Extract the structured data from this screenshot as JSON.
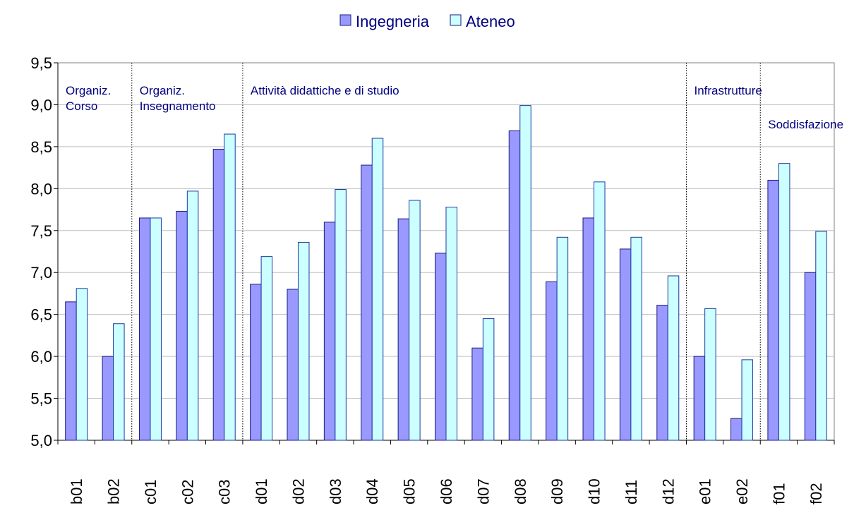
{
  "chart_data": {
    "type": "bar",
    "title": "",
    "xlabel": "",
    "ylabel": "",
    "ylim": [
      5.0,
      9.5
    ],
    "yticks": [
      "5,0",
      "5,5",
      "6,0",
      "6,5",
      "7,0",
      "7,5",
      "8,0",
      "8,5",
      "9,0",
      "9,5"
    ],
    "grid": true,
    "legend_position": "top-center",
    "categories": [
      "b01",
      "b02",
      "c01",
      "c02",
      "c03",
      "d01",
      "d02",
      "d03",
      "d04",
      "d05",
      "d06",
      "d07",
      "d08",
      "d09",
      "d10",
      "d11",
      "d12",
      "e01",
      "e02",
      "f01",
      "f02"
    ],
    "series": [
      {
        "name": "Ingegneria",
        "color": "#9999ff",
        "values": [
          6.65,
          6.0,
          7.65,
          7.73,
          8.47,
          6.86,
          6.8,
          7.6,
          8.28,
          7.64,
          7.23,
          6.1,
          8.69,
          6.89,
          7.65,
          7.28,
          6.61,
          6.0,
          5.26,
          8.1,
          7.0
        ]
      },
      {
        "name": "Ateneo",
        "color": "#ccffff",
        "values": [
          6.81,
          6.39,
          7.65,
          7.97,
          8.65,
          7.19,
          7.36,
          7.99,
          8.6,
          7.86,
          7.78,
          6.45,
          8.99,
          7.42,
          8.08,
          7.42,
          6.96,
          6.57,
          5.96,
          8.3,
          7.49
        ]
      }
    ],
    "groups": [
      {
        "label": "Organiz.\nCorso",
        "start_index": 0
      },
      {
        "label": "Organiz.\nInsegnamento",
        "start_index": 2
      },
      {
        "label": "Attività didattiche e di studio",
        "start_index": 5
      },
      {
        "label": "Infrastrutture",
        "start_index": 17
      },
      {
        "label": "Soddisfazione",
        "start_index": 19
      }
    ]
  }
}
